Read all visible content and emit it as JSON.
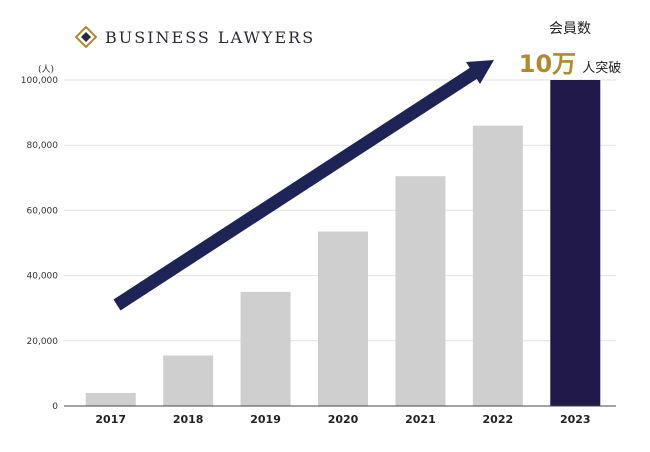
{
  "brand": {
    "name": "BUSINESS LAWYERS",
    "logo_icon": "diamond-logo-icon"
  },
  "callout": {
    "title": "会員数",
    "highlight": "10万",
    "rest": "人突破",
    "highlight_color": "#b08a2e"
  },
  "colors": {
    "bar": "#cfcfcf",
    "bar_highlight": "#20194a",
    "arrow": "#1f2456"
  },
  "chart_data": {
    "type": "bar",
    "categories": [
      "2017",
      "2018",
      "2019",
      "2020",
      "2021",
      "2022",
      "2023"
    ],
    "values": [
      4000,
      15500,
      35000,
      53500,
      70500,
      86000,
      100000
    ],
    "highlight_category": "2023",
    "ylabel": "(人)",
    "ylim": [
      0,
      100000
    ],
    "yticks": [
      "0",
      "20,000",
      "40,000",
      "60,000",
      "80,000",
      "100,000"
    ],
    "ytick_values": [
      0,
      20000,
      40000,
      60000,
      80000,
      100000
    ],
    "grid": true,
    "annotation": "upward-trend-arrow"
  }
}
